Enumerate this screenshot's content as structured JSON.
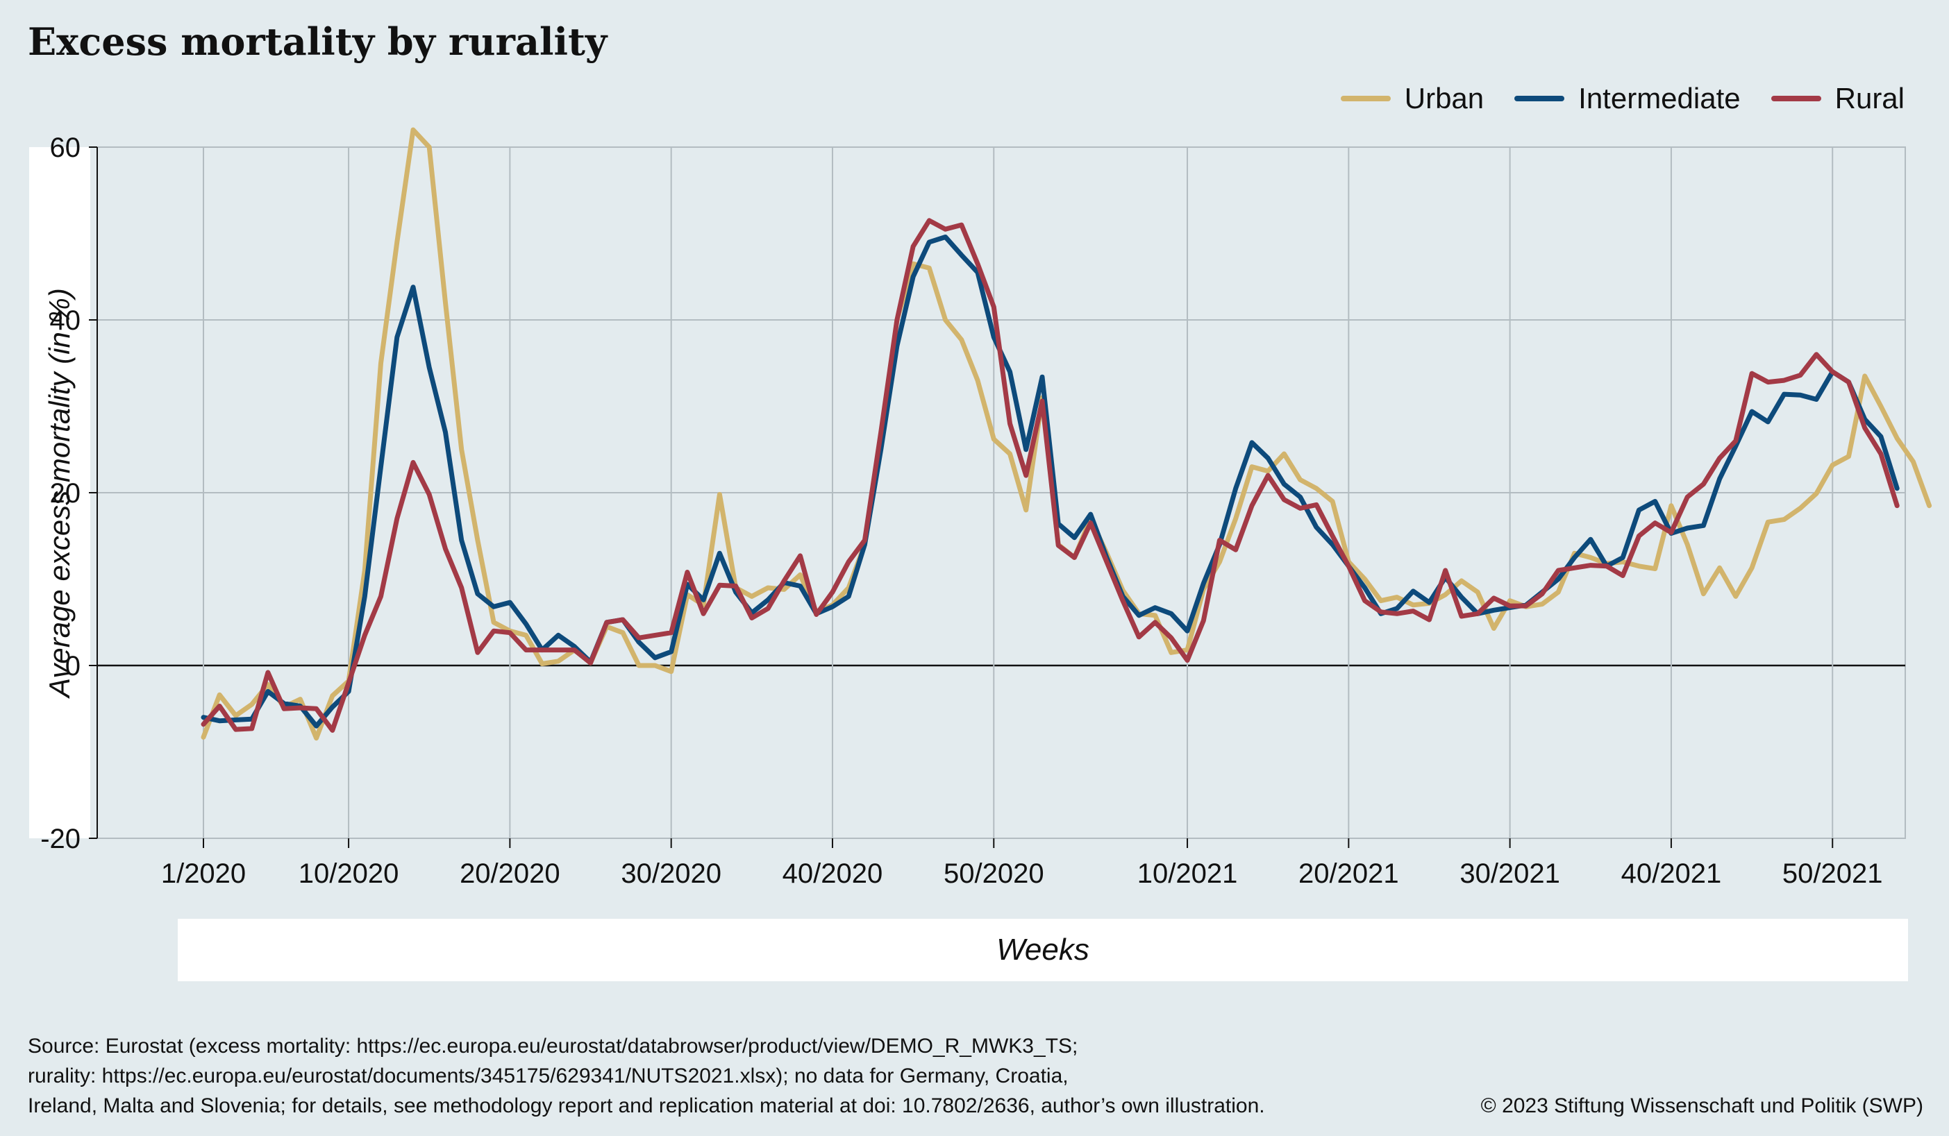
{
  "title": "Excess mortality by rurality",
  "footer": {
    "source_line1": "Source: Eurostat (excess mortality: https://ec.europa.eu/eurostat/databrowser/product/view/DEMO_R_MWK3_TS;",
    "source_line2": "rurality: https://ec.europa.eu/eurostat/documents/345175/629341/NUTS2021.xlsx); no data for Germany, Croatia,",
    "source_line3": "Ireland, Malta and Slovenia; for details, see methodology report and replication material at doi: 10.7802/2636, author’s own illustration.",
    "copyright": "© 2023 Stiftung Wissenschaft und Politik (SWP)"
  },
  "chart_data": {
    "type": "line",
    "title": "Excess mortality by rurality",
    "xlabel": "Weeks",
    "ylabel": "Average excess mortality (in %)",
    "ylim": [
      -20,
      60
    ],
    "yticks": [
      60,
      40,
      20,
      0,
      -20
    ],
    "ytick_labels": [
      "60",
      "40",
      "20",
      "0",
      "-20"
    ],
    "xticks": [
      "1/2020",
      "10/2020",
      "20/2020",
      "30/2020",
      "40/2020",
      "50/2020",
      "10/2021",
      "20/2021",
      "30/2021",
      "40/2021",
      "50/2021"
    ],
    "x_week_start": "1/2020",
    "x_unit": "calendar week",
    "grid": true,
    "legend_position": "top-right",
    "series": [
      {
        "name": "Urban",
        "color": "#d2b46c",
        "values": [
          -8.3,
          -3.4,
          -5.8,
          -4.5,
          -2.2,
          -4.8,
          -3.9,
          -8.4,
          -3.5,
          -1.8,
          11,
          35,
          49,
          62,
          60,
          42,
          25,
          14.5,
          5,
          4,
          3.5,
          0.2,
          0.5,
          1.8,
          0.3,
          4.5,
          3.8,
          0,
          0,
          -0.7,
          8.2,
          7,
          19.8,
          9,
          8,
          9,
          8.8,
          10.5,
          6.2,
          7,
          9,
          14,
          26,
          40,
          46.5,
          46,
          40,
          37.7,
          33,
          26.2,
          24.5,
          18,
          31,
          14,
          12.5,
          17,
          13,
          8.7,
          6,
          5.8,
          1.5,
          1.8,
          8.8,
          12,
          17,
          23,
          22.5,
          24.5,
          21.5,
          20.5,
          19,
          12,
          10,
          7.5,
          7.9,
          7,
          7.2,
          8.2,
          9.8,
          8.5,
          4.3,
          7.5,
          6.8,
          7.1,
          8.5,
          13,
          12.5,
          11.8,
          12,
          11.5,
          11.2,
          18.5,
          14,
          8.3,
          11.3,
          8,
          11.3,
          16.6,
          16.9,
          18.2,
          19.9,
          23.2,
          24.2,
          33.5,
          30,
          26.3,
          23.6,
          18.5
        ]
      },
      {
        "name": "Intermediate",
        "color": "#0d4a7b",
        "values": [
          -6,
          -6.4,
          -6.3,
          -6.2,
          -3,
          -4.4,
          -4.7,
          -7,
          -4.8,
          -3,
          8,
          23,
          38,
          43.8,
          34.5,
          27,
          14.5,
          8.3,
          6.8,
          7.3,
          4.8,
          1.8,
          3.5,
          2.2,
          0.4,
          5,
          5.3,
          2.7,
          0.9,
          1.6,
          9.4,
          7.6,
          13,
          8.5,
          6.1,
          7.6,
          9.6,
          9.2,
          6,
          6.8,
          8,
          14,
          25,
          37,
          45,
          49,
          49.6,
          47.5,
          45.5,
          38,
          34,
          25,
          33.4,
          16.4,
          14.8,
          17.5,
          12.5,
          8,
          5.8,
          6.7,
          6,
          4,
          9.5,
          14,
          20.5,
          25.8,
          24,
          21,
          19.5,
          16,
          14,
          11.5,
          9,
          6,
          6.6,
          8.6,
          7.3,
          10.2,
          7.9,
          6,
          6.4,
          6.7,
          7,
          8.5,
          10,
          12.5,
          14.6,
          11.5,
          12.5,
          18,
          19,
          15.3,
          15.9,
          16.2,
          21.6,
          25.4,
          29.4,
          28.2,
          31.4,
          31.3,
          30.8,
          34,
          32.8,
          28.5,
          26.5,
          20.5
        ]
      },
      {
        "name": "Rural",
        "color": "#a33a46",
        "values": [
          -6.8,
          -4.7,
          -7.4,
          -7.3,
          -0.8,
          -5,
          -4.9,
          -5,
          -7.5,
          -2,
          3.5,
          8,
          17,
          23.5,
          19.8,
          13.5,
          9,
          1.5,
          4,
          3.8,
          1.8,
          1.8,
          1.8,
          1.8,
          0.3,
          5,
          5.3,
          3.2,
          3.5,
          3.8,
          10.8,
          6,
          9.3,
          9.2,
          5.5,
          6.6,
          9.8,
          12.7,
          5.9,
          8.5,
          12,
          14.5,
          27,
          40,
          48.5,
          51.5,
          50.5,
          51,
          46.5,
          41.5,
          28,
          22,
          30.6,
          13.9,
          12.5,
          16.5,
          12,
          7.5,
          3.3,
          5,
          3.2,
          0.6,
          5.2,
          14.5,
          13.4,
          18.5,
          22,
          19.2,
          18.2,
          18.6,
          15,
          11.5,
          7.5,
          6.2,
          6,
          6.3,
          5.3,
          11,
          5.7,
          6,
          7.8,
          6.9,
          6.9,
          8.3,
          11,
          11.3,
          11.6,
          11.5,
          10.4,
          15,
          16.5,
          15.4,
          19.5,
          21,
          24,
          26,
          33.8,
          32.8,
          33,
          33.6,
          36,
          34,
          32.8,
          27.5,
          24.5,
          18.5
        ]
      }
    ]
  }
}
